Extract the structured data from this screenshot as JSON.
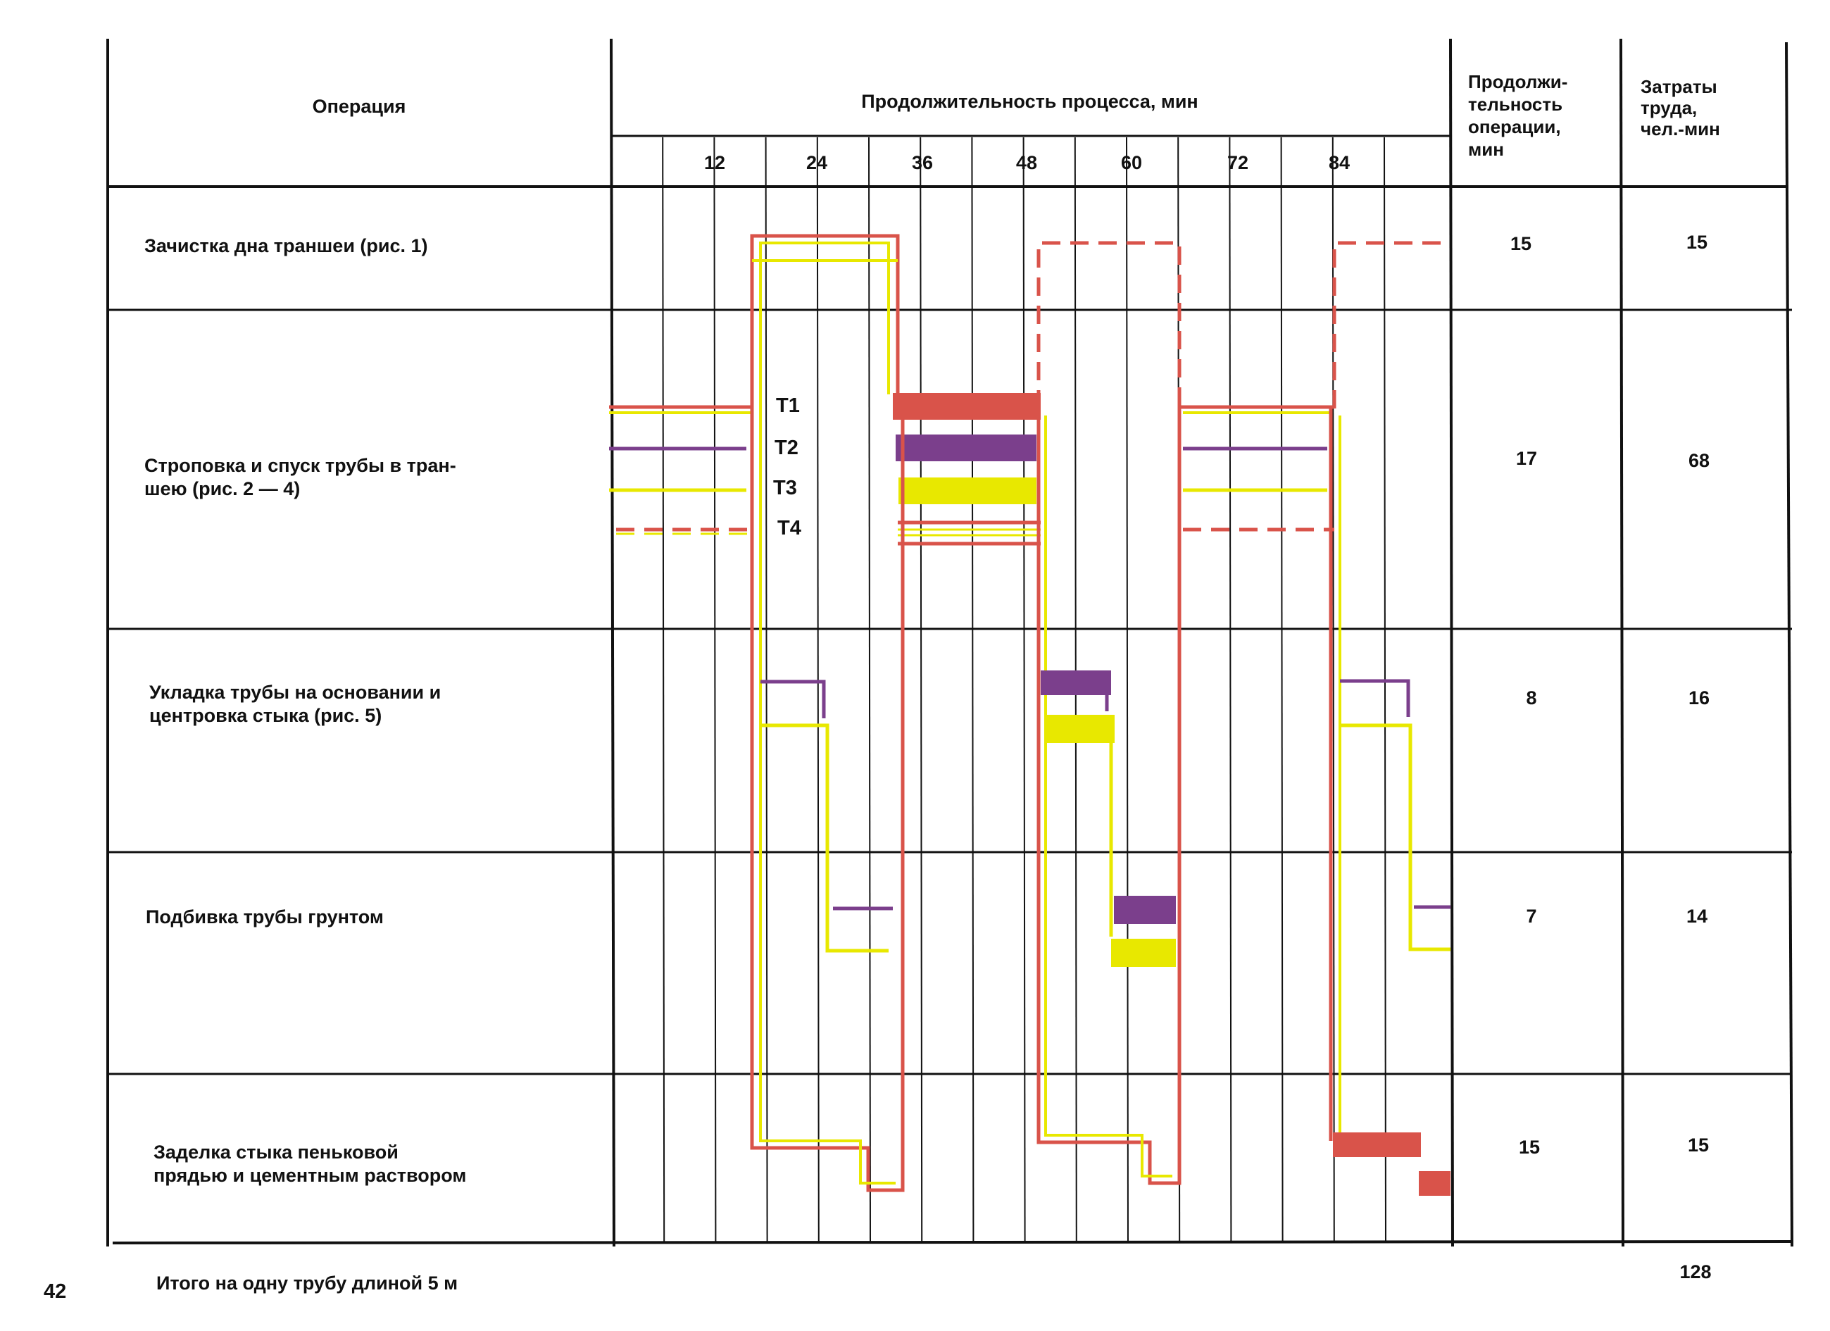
{
  "page_number": "42",
  "header": {
    "operation": "Операция",
    "process_duration": "Продолжительность процесса, мин",
    "op_duration": "Продолжи-\nтельность\nоперации,\nмин",
    "labor": "Затраты\nтруда,\nчел.-мин"
  },
  "ticks": [
    "12",
    "24",
    "36",
    "48",
    "60",
    "72",
    "84"
  ],
  "rows": [
    {
      "operation": "Зачистка дна траншеи (рис. 1)",
      "duration": "15",
      "labor": "15"
    },
    {
      "operation": "Строповка и спуск трубы в тран-\nшею (рис. 2 — 4)",
      "duration": "17",
      "labor": "68"
    },
    {
      "operation": "Укладка трубы на основании и\nцентровка стыка (рис. 5)",
      "duration": "8",
      "labor": "16"
    },
    {
      "operation": "Подбивка трубы грунтом",
      "duration": "7",
      "labor": "14"
    },
    {
      "operation": "Заделка стыка пеньковой\nпрядью и цементным раствором",
      "duration": "15",
      "labor": "15"
    }
  ],
  "workers": [
    "Т1",
    "Т2",
    "Т3",
    "Т4"
  ],
  "colors": {
    "red": "#d9534a",
    "purple": "#7b3f8c",
    "yellow": "#e8e800",
    "line": "#111111"
  },
  "total": {
    "label": "Итого на одну трубу длиной 5 м",
    "value": "128"
  }
}
